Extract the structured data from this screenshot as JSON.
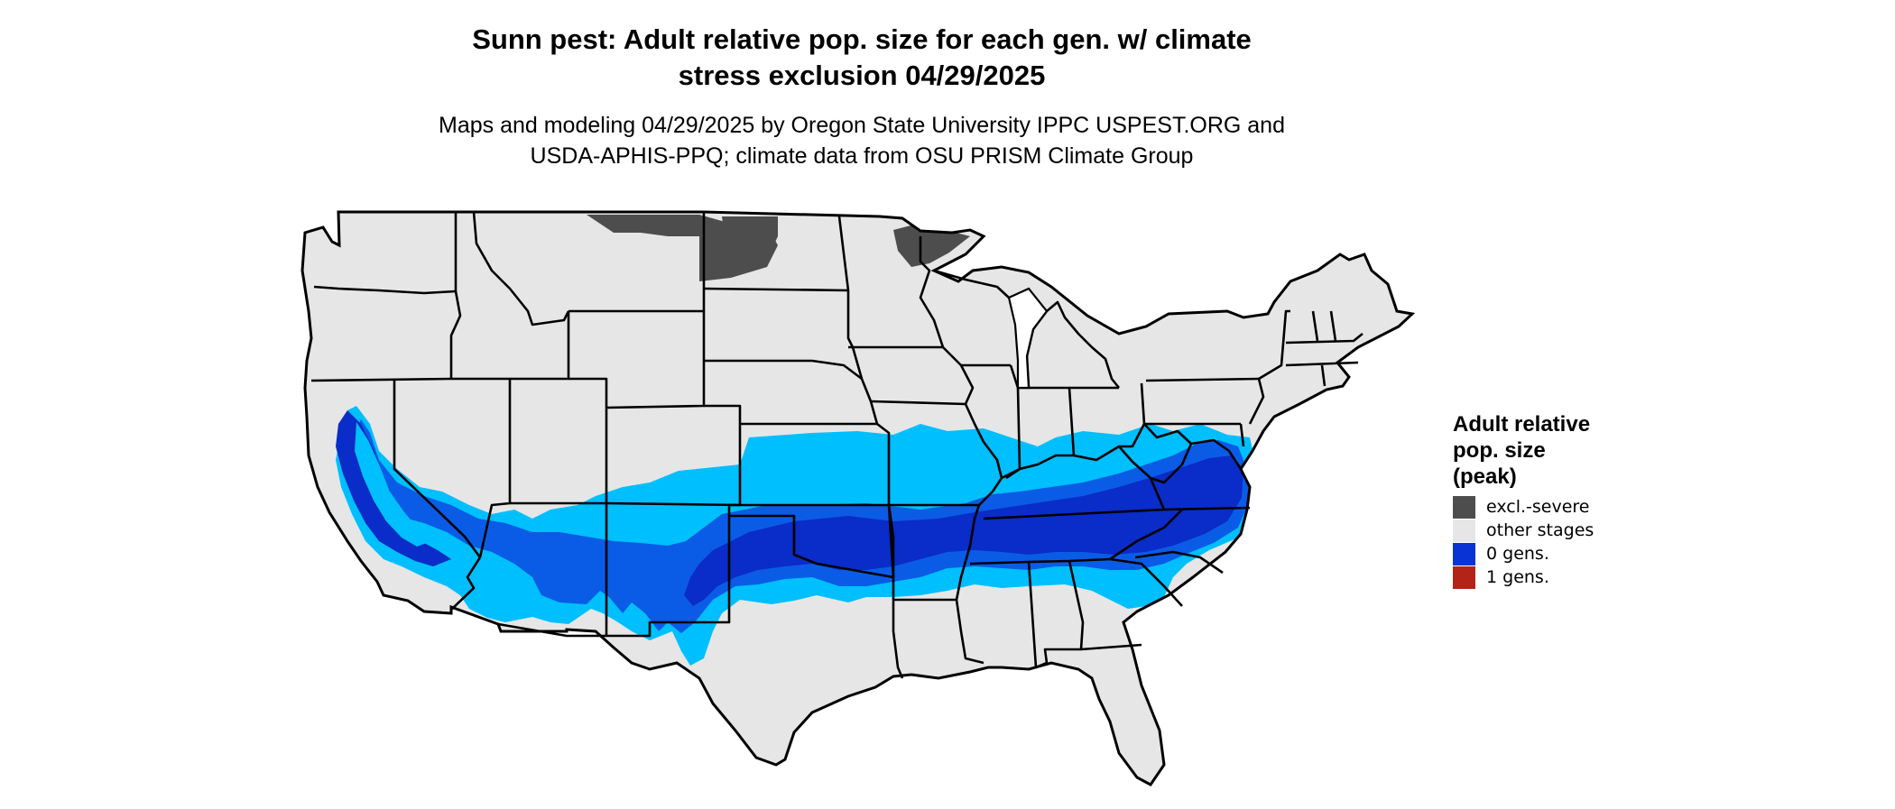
{
  "map": {
    "title_line1": "Sunn pest: Adult relative pop. size for each gen. w/ climate",
    "title_line2": "stress exclusion 04/29/2025",
    "subtitle_line1": "Maps and modeling 04/29/2025 by Oregon State University IPPC USPEST.ORG and",
    "subtitle_line2": "USDA-APHIS-PPQ; climate data from OSU PRISM Climate Group",
    "region": "Contiguous United States"
  },
  "legend": {
    "title_line1": "Adult relative",
    "title_line2": "pop. size",
    "title_line3": "(peak)",
    "items": [
      {
        "label": "excl.-severe",
        "color": "#4d4d4d"
      },
      {
        "label": "other stages",
        "color": "#e6e6e6"
      },
      {
        "label": "0 gens.",
        "color": "#0a33d6"
      },
      {
        "label": "1 gens.",
        "color": "#b22418"
      }
    ]
  },
  "colors": {
    "land": "#e6e6e6",
    "state_border": "#000000",
    "excluded": "#4d4d4d",
    "band_light": "#00bfff",
    "band_mid": "#0a5ce6",
    "band_dark": "#0a2cc8"
  }
}
